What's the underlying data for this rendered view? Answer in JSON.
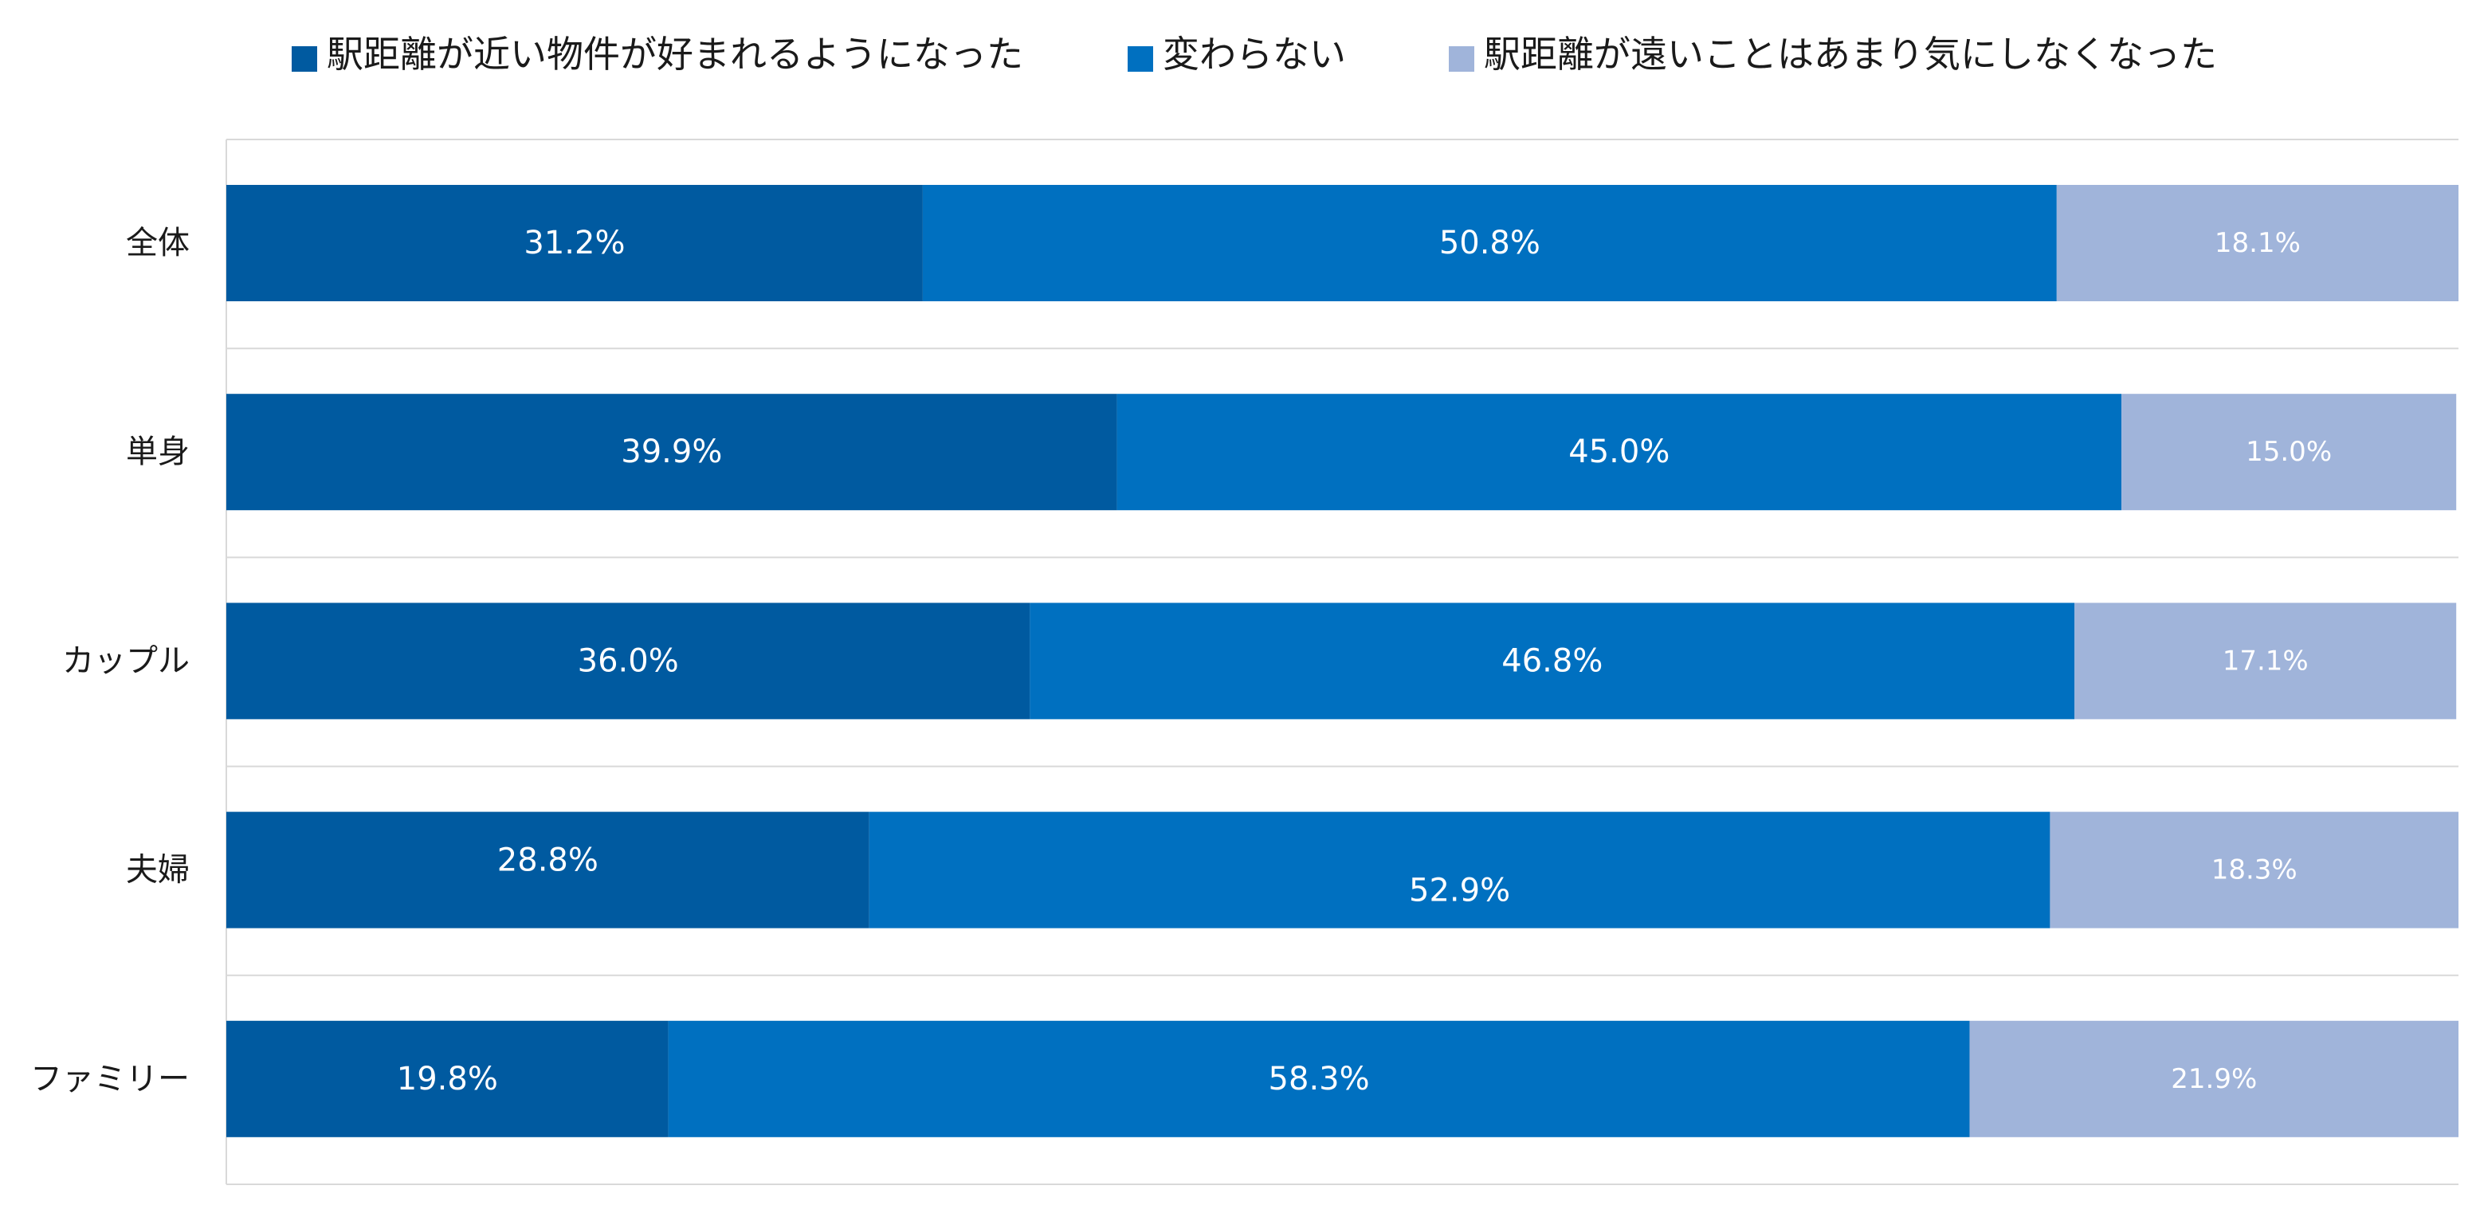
{
  "chart_data": {
    "type": "bar",
    "orientation": "horizontal",
    "stacked": true,
    "categories": [
      "全体",
      "単身",
      "カップル",
      "夫婦",
      "ファミリー"
    ],
    "series": [
      {
        "name": "駅距離が近い物件が好まれるようになった",
        "color": "#005aa0",
        "values": [
          31.2,
          39.9,
          36.0,
          28.8,
          19.8
        ],
        "labels": [
          "31.2%",
          "39.9%",
          "36.0%",
          "28.8%",
          "19.8%"
        ]
      },
      {
        "name": "変わらない",
        "color": "#0070c0",
        "values": [
          50.8,
          45.0,
          46.8,
          52.9,
          58.3
        ],
        "labels": [
          "50.8%",
          "45.0%",
          "46.8%",
          "52.9%",
          "58.3%"
        ]
      },
      {
        "name": "駅距離が遠いことはあまり気にしなくなった",
        "color": "#a0b4da",
        "values": [
          18.1,
          15.0,
          17.1,
          18.3,
          21.9
        ],
        "labels": [
          "18.1%",
          "15.0%",
          "17.1%",
          "18.3%",
          "21.9%"
        ]
      }
    ],
    "xlim": [
      0,
      100
    ],
    "legend_position": "top",
    "grid": "horizontal"
  }
}
